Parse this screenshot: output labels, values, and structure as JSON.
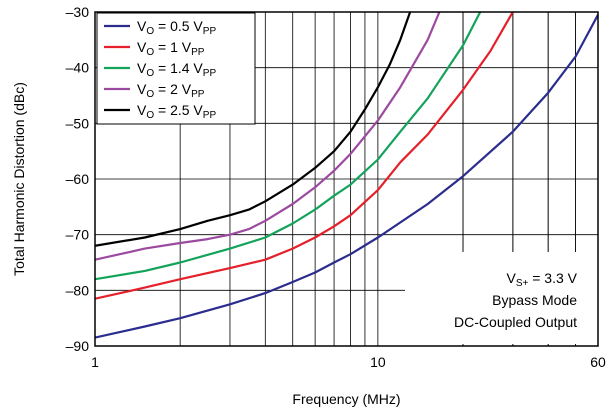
{
  "chart_data": {
    "type": "line",
    "xlabel": "Frequency (MHz)",
    "ylabel": "Total Harmonic Distortion (dBc)",
    "xscale": "log",
    "xlim": [
      1,
      60
    ],
    "ylim": [
      -90,
      -30
    ],
    "x_tick_labels": [
      "1",
      "10",
      "60"
    ],
    "x_tick_values": [
      1,
      10,
      60
    ],
    "y_tick_values": [
      -90,
      -80,
      -70,
      -60,
      -50,
      -40,
      -30
    ],
    "y_tick_labels": [
      "–90",
      "–80",
      "–70",
      "–60",
      "–50",
      "–40",
      "–30"
    ],
    "grid": true,
    "legend_position": "top-left",
    "annotations": [
      "V_S+ = 3.3 V",
      "Bypass Mode",
      "DC-Coupled Output"
    ],
    "series": [
      {
        "name": "V_O = 0.5 V_PP",
        "color": "#2b2d8e",
        "x": [
          1,
          1.5,
          2,
          3,
          4,
          5,
          6,
          7,
          8,
          10,
          15,
          20,
          30,
          40,
          50,
          60
        ],
        "y": [
          -88.5,
          -86.5,
          -85,
          -82.5,
          -80.5,
          -78.5,
          -76.8,
          -75,
          -73.5,
          -70.5,
          -64.5,
          -59.5,
          -51.5,
          -44.5,
          -38,
          -30.5
        ]
      },
      {
        "name": "V_O = 1 V_PP",
        "color": "#e5202a",
        "x": [
          1,
          1.5,
          2,
          3,
          4,
          5,
          6,
          7,
          8,
          10,
          12,
          15,
          20,
          25,
          30
        ],
        "y": [
          -81.5,
          -79.5,
          -78,
          -76,
          -74.5,
          -72.5,
          -70.5,
          -68.5,
          -66.5,
          -62,
          -57,
          -52,
          -44,
          -37,
          -30
        ]
      },
      {
        "name": "V_O = 1.4 V_PP",
        "color": "#13a35a",
        "x": [
          1,
          1.5,
          2,
          3,
          4,
          5,
          6,
          7,
          8,
          10,
          12,
          15,
          20,
          23
        ],
        "y": [
          -78,
          -76.5,
          -75,
          -72.5,
          -70.5,
          -68,
          -65.5,
          -63,
          -61,
          -56.5,
          -51.5,
          -45.5,
          -36,
          -30
        ]
      },
      {
        "name": "V_O = 2 V_PP",
        "color": "#9c4aa0",
        "x": [
          1,
          1.5,
          2,
          2.5,
          3,
          3.5,
          4,
          5,
          6,
          7,
          8,
          10,
          12,
          15,
          16.5
        ],
        "y": [
          -74.5,
          -72.5,
          -71.5,
          -70.8,
          -70,
          -69,
          -67.5,
          -64.5,
          -61.5,
          -58.5,
          -55.5,
          -49.5,
          -43.5,
          -35,
          -30
        ]
      },
      {
        "name": "V_O = 2.5 V_PP",
        "color": "#000000",
        "x": [
          1,
          1.5,
          2,
          2.5,
          3,
          3.5,
          4,
          5,
          6,
          7,
          8,
          9,
          10,
          11,
          12,
          13
        ],
        "y": [
          -72,
          -70.5,
          -69,
          -67.5,
          -66.5,
          -65.5,
          -64,
          -61,
          -58,
          -55,
          -51.5,
          -47.5,
          -43.5,
          -39.5,
          -35,
          -30
        ]
      }
    ]
  }
}
